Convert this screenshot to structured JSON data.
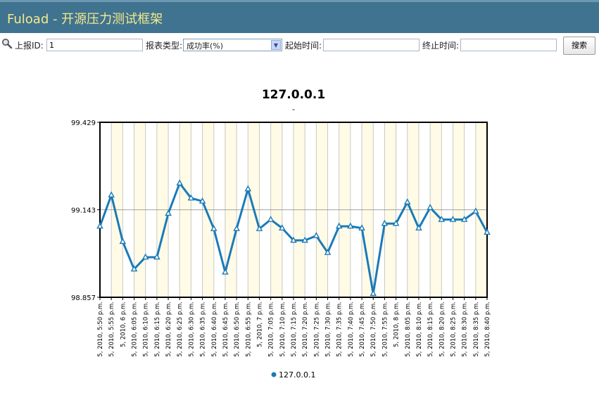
{
  "header": {
    "title": "Fuload - 开源压力测试框架"
  },
  "toolbar": {
    "search_icon": "magnifier-icon",
    "report_id_label": "上报ID:",
    "report_id_value": "1",
    "report_type_label": "报表类型:",
    "report_type_value": "成功率(%)",
    "start_time_label": "起始时间:",
    "start_time_value": "",
    "end_time_label": "终止时间:",
    "end_time_value": "",
    "search_button": "搜索"
  },
  "chart_data": {
    "type": "line",
    "title": "127.0.0.1",
    "subtitle": "-",
    "ylim": [
      98.857,
      99.429
    ],
    "yticks": [
      "99.429",
      "99.143",
      "98.857"
    ],
    "grid": true,
    "legend": "bottom",
    "categories": [
      "5, 2010, 5:50 p.m.",
      "5, 2010, 5:55 p.m.",
      "5, 2010, 6 p.m.",
      "5, 2010, 6:05 p.m.",
      "5, 2010, 6:10 p.m.",
      "5, 2010, 6:15 p.m.",
      "5, 2010, 6:20 p.m.",
      "5, 2010, 6:25 p.m.",
      "5, 2010, 6:30 p.m.",
      "5, 2010, 6:35 p.m.",
      "5, 2010, 6:40 p.m.",
      "5, 2010, 6:45 p.m.",
      "5, 2010, 6:50 p.m.",
      "5, 2010, 6:55 p.m.",
      "5, 2010, 7 p.m.",
      "5, 2010, 7:05 p.m.",
      "5, 2010, 7:10 p.m.",
      "5, 2010, 7:15 p.m.",
      "5, 2010, 7:20 p.m.",
      "5, 2010, 7:25 p.m.",
      "5, 2010, 7:30 p.m.",
      "5, 2010, 7:35 p.m.",
      "5, 2010, 7:40 p.m.",
      "5, 2010, 7:45 p.m.",
      "5, 2010, 7:50 p.m.",
      "5, 2010, 7:55 p.m.",
      "5, 2010, 8 p.m.",
      "5, 2010, 8:05 p.m.",
      "5, 2010, 8:10 p.m.",
      "5, 2010, 8:15 p.m.",
      "5, 2010, 8:20 p.m.",
      "5, 2010, 8:25 p.m.",
      "5, 2010, 8:30 p.m.",
      "5, 2010, 8:35 p.m.",
      "5, 2010, 8:40 p.m."
    ],
    "series": [
      {
        "name": "127.0.0.1",
        "color": "#1a7ab8",
        "values": [
          99.089,
          99.191,
          99.039,
          98.949,
          98.988,
          98.988,
          99.131,
          99.23,
          99.181,
          99.171,
          99.081,
          98.939,
          99.081,
          99.211,
          99.081,
          99.111,
          99.083,
          99.043,
          99.043,
          99.058,
          99.003,
          99.089,
          99.089,
          99.083,
          98.869,
          99.098,
          99.098,
          99.168,
          99.083,
          99.15,
          99.111,
          99.111,
          99.111,
          99.138,
          99.069
        ]
      }
    ]
  }
}
